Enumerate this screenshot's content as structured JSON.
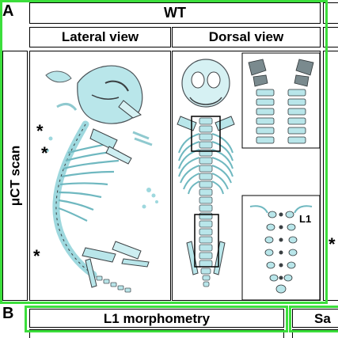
{
  "panel_a": {
    "letter": "A",
    "group_header": "WT",
    "col_headers": [
      "Lateral view",
      "Dorsal view"
    ],
    "row_label": "μCT scan",
    "asterisk": "*",
    "vertebra_label": "L1"
  },
  "panel_b": {
    "letter": "B",
    "header": "L1 morphometry",
    "header_right": "Sa"
  },
  "colors": {
    "bone": "#b9e6ea",
    "bone_shadow": "#3a3f42",
    "highlight_frame": "#3cde3c"
  }
}
